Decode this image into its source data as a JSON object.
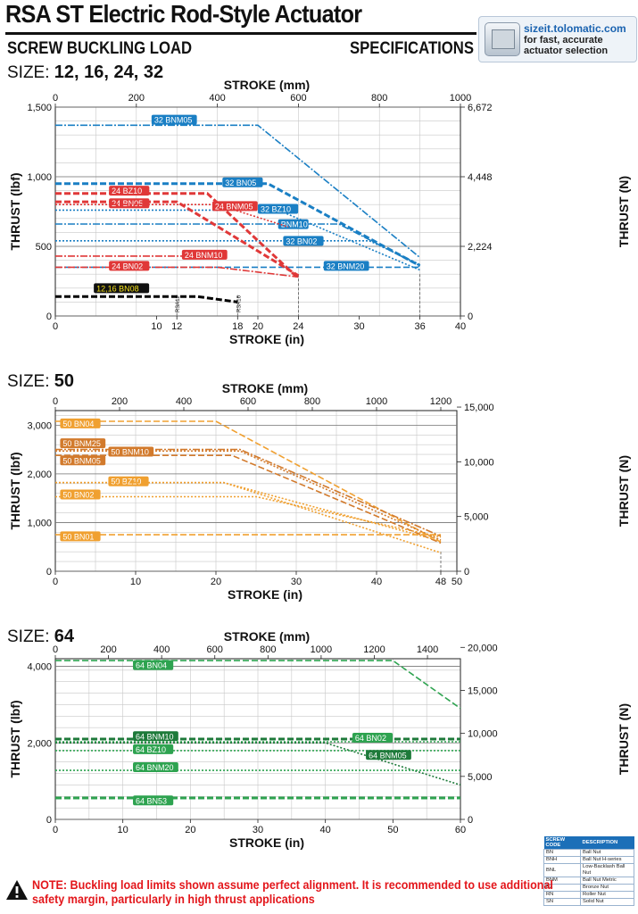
{
  "header": {
    "title": "RSA ST Electric Rod-Style Actuator",
    "left_heading": "SCREW BUCKLING LOAD",
    "right_heading": "SPECIFICATIONS",
    "sizeit_url": "sizeit.tolomatic.com",
    "sizeit_line1": "for fast, accurate",
    "sizeit_line2": "actuator selection",
    "sizeit_icon": "calculator-icon"
  },
  "chart_data": [
    {
      "type": "line",
      "size_prefix": "SIZE:",
      "size_label": "12, 16, 24, 32",
      "xlabel": "STROKE (in)",
      "x2label": "STROKE (mm)",
      "ylabel": "THRUST (lbf)",
      "y2label": "THRUST (N)",
      "xlim": [
        0,
        40
      ],
      "ylim": [
        0,
        1500
      ],
      "x_ticks": [
        "0",
        "10",
        "12",
        "18",
        "20",
        "24",
        "30",
        "36",
        "40"
      ],
      "x_tick_values": [
        0,
        10,
        12,
        18,
        20,
        24,
        30,
        36,
        40
      ],
      "x2_ticks": [
        "0",
        "200",
        "400",
        "600",
        "800",
        "1000"
      ],
      "y_ticks": [
        "0",
        "500",
        "1,000",
        "1,500"
      ],
      "y2_ticks": [
        "0",
        "2,224",
        "4,448",
        "6,672"
      ],
      "stroke_markers": [
        "RSA12",
        "RSA16"
      ],
      "grid": true,
      "series": [
        {
          "name": "32 BNM05",
          "color": "#1a7fc4",
          "dash": "dashdot",
          "label_at": [
            9.5,
            1400
          ],
          "x": [
            0,
            20,
            36
          ],
          "y": [
            1370,
            1370,
            420
          ]
        },
        {
          "name": "32 BN05",
          "color": "#1a7fc4",
          "dash": "dash",
          "label_at": [
            16.5,
            950
          ],
          "x": [
            0,
            21,
            36
          ],
          "y": [
            950,
            950,
            360
          ]
        },
        {
          "name": "32 BZ10",
          "color": "#1a7fc4",
          "dash": "dot",
          "label_at": [
            20,
            760
          ],
          "x": [
            0,
            22,
            36
          ],
          "y": [
            760,
            760,
            330
          ]
        },
        {
          "name": "BNM10",
          "color": "#1a7fc4",
          "dash": "dashdot",
          "label_at": [
            22,
            650
          ],
          "x": [
            0,
            28,
            36
          ],
          "y": [
            660,
            660,
            360
          ]
        },
        {
          "name": "32 BN02",
          "color": "#1a7fc4",
          "dash": "dot",
          "label_at": [
            22.5,
            530
          ],
          "x": [
            0,
            31,
            36
          ],
          "y": [
            540,
            540,
            370
          ]
        },
        {
          "name": "32 BNM20",
          "color": "#1a7fc4",
          "dash": "dash",
          "label_at": [
            26.5,
            350
          ],
          "x": [
            0,
            36
          ],
          "y": [
            350,
            350
          ]
        },
        {
          "name": "24 BZ10",
          "color": "#e03838",
          "dash": "dash",
          "label_at": [
            5.3,
            890
          ],
          "x": [
            0,
            15,
            24
          ],
          "y": [
            880,
            880,
            270
          ]
        },
        {
          "name": "24 BN05",
          "color": "#e03838",
          "dash": "dash",
          "label_at": [
            5.3,
            800
          ],
          "x": [
            0,
            12,
            24
          ],
          "y": [
            820,
            820,
            290
          ]
        },
        {
          "name": "24 BNM05",
          "color": "#e03838",
          "dash": "dot",
          "label_at": [
            15.5,
            780
          ],
          "x": [
            0,
            16,
            23
          ],
          "y": [
            800,
            800,
            640
          ]
        },
        {
          "name": "24 BNM10",
          "color": "#e03838",
          "dash": "dashdot",
          "label_at": [
            12.5,
            430
          ],
          "x": [
            0,
            16
          ],
          "y": [
            430,
            430
          ]
        },
        {
          "name": "24 BN02",
          "color": "#e03838",
          "dash": "dashdot",
          "label_at": [
            5.3,
            350
          ],
          "x": [
            0,
            16,
            24
          ],
          "y": [
            350,
            350,
            280
          ]
        },
        {
          "name": "12,16 BN08",
          "color": "#000000",
          "dash": "dash",
          "label_at": [
            3.8,
            190
          ],
          "x": [
            0,
            14,
            18
          ],
          "y": [
            140,
            140,
            100
          ]
        }
      ]
    },
    {
      "type": "line",
      "size_prefix": "SIZE:",
      "size_label": "50",
      "xlabel": "STROKE (in)",
      "x2label": "STROKE (mm)",
      "ylabel": "THRUST (lbf)",
      "y2label": "THRUST (N)",
      "xlim": [
        0,
        50
      ],
      "ylim": [
        0,
        3300
      ],
      "x_ticks": [
        "0",
        "10",
        "20",
        "30",
        "40",
        "48",
        "50"
      ],
      "x_tick_values": [
        0,
        10,
        20,
        30,
        40,
        48,
        50
      ],
      "x2_ticks": [
        "0",
        "200",
        "400",
        "600",
        "800",
        "1000",
        "1200"
      ],
      "y_ticks": [
        "0",
        "1,000",
        "2,000",
        "3,000"
      ],
      "y2_ticks": [
        "0",
        "5,000",
        "10,000",
        "15,000"
      ],
      "grid": true,
      "series": [
        {
          "name": "50 BN04",
          "color": "#f0a030",
          "dash": "dash",
          "label_at": [
            0.6,
            3010
          ],
          "x": [
            0,
            20,
            48
          ],
          "y": [
            3080,
            3080,
            600
          ]
        },
        {
          "name": "50 BNM25",
          "color": "#d27a2c",
          "dash": "dashdot",
          "label_at": [
            0.6,
            2600
          ],
          "x": [
            0,
            23,
            48
          ],
          "y": [
            2500,
            2500,
            720
          ]
        },
        {
          "name": "50 BNM10",
          "color": "#d27a2c",
          "dash": "dot",
          "label_at": [
            6.6,
            2430
          ],
          "x": [
            0,
            23,
            48
          ],
          "y": [
            2470,
            2470,
            640
          ]
        },
        {
          "name": "50 BNM05",
          "color": "#d27a2c",
          "dash": "dash",
          "label_at": [
            0.6,
            2250
          ],
          "x": [
            0,
            22,
            48
          ],
          "y": [
            2380,
            2380,
            580
          ]
        },
        {
          "name": "50 BZ10",
          "color": "#f0a030",
          "dash": "dot",
          "label_at": [
            6.6,
            1820
          ],
          "x": [
            0,
            21,
            48
          ],
          "y": [
            1820,
            1820,
            620
          ]
        },
        {
          "name": "50 BN02",
          "color": "#f0a030",
          "dash": "dot",
          "label_at": [
            0.6,
            1550
          ],
          "x": [
            0,
            25,
            48
          ],
          "y": [
            1530,
            1530,
            700
          ]
        },
        {
          "name": "50 BN01",
          "color": "#f0a030",
          "dash": "dash",
          "label_at": [
            0.6,
            690
          ],
          "x": [
            0,
            48
          ],
          "y": [
            750,
            750
          ]
        },
        {
          "name": "",
          "color": "#f0a030",
          "dash": "dot",
          "x": [
            0,
            21,
            48
          ],
          "y": [
            1820,
            1820,
            380
          ]
        }
      ]
    },
    {
      "type": "line",
      "size_prefix": "SIZE:",
      "size_label": "64",
      "xlabel": "STROKE (in)",
      "x2label": "STROKE (mm)",
      "ylabel": "THRUST (lbf)",
      "y2label": "THRUST (N)",
      "xlim": [
        0,
        60
      ],
      "ylim": [
        0,
        4200
      ],
      "x_ticks": [
        "0",
        "10",
        "20",
        "30",
        "40",
        "50",
        "60"
      ],
      "x_tick_values": [
        0,
        10,
        20,
        30,
        40,
        50,
        60
      ],
      "x2_ticks": [
        "0",
        "200",
        "400",
        "600",
        "800",
        "1000",
        "1200",
        "1400"
      ],
      "y_ticks": [
        "0",
        "2,000",
        "4,000"
      ],
      "y2_ticks": [
        "0",
        "5,000",
        "10,000",
        "15,000",
        "20,000"
      ],
      "grid": true,
      "series": [
        {
          "name": "64 BN04",
          "color": "#2ea350",
          "dash": "dash",
          "label_at": [
            11.5,
            4000
          ],
          "x": [
            0,
            50,
            60
          ],
          "y": [
            4150,
            4150,
            2900
          ]
        },
        {
          "name": "64 BNM10",
          "color": "#1e7a3a",
          "dash": "dash",
          "label_at": [
            11.5,
            2140
          ],
          "x": [
            0,
            60
          ],
          "y": [
            2100,
            2100
          ]
        },
        {
          "name": "64 BN02",
          "color": "#2ea350",
          "dash": "dot",
          "label_at": [
            44,
            2100
          ],
          "x": [
            0,
            60
          ],
          "y": [
            2030,
            2030
          ]
        },
        {
          "name": "64 BZ10",
          "color": "#2ea350",
          "dash": "dot",
          "label_at": [
            11.5,
            1800
          ],
          "x": [
            0,
            60
          ],
          "y": [
            1800,
            1800
          ]
        },
        {
          "name": "64 BNM05",
          "color": "#1e7a3a",
          "dash": "dot",
          "label_at": [
            46,
            1650
          ],
          "x": [
            0,
            40,
            60
          ],
          "y": [
            2000,
            2000,
            900
          ]
        },
        {
          "name": "64 BNM20",
          "color": "#2ea350",
          "dash": "dot",
          "label_at": [
            11.5,
            1330
          ],
          "x": [
            0,
            60
          ],
          "y": [
            1280,
            1280
          ]
        },
        {
          "name": "64 BN53",
          "color": "#2ea350",
          "dash": "dash",
          "label_at": [
            11.5,
            460
          ],
          "x": [
            0,
            60
          ],
          "y": [
            560,
            560
          ]
        }
      ]
    }
  ],
  "legend_table": {
    "header": [
      "SCREW CODE",
      "DESCRIPTION"
    ],
    "rows": [
      [
        "BN",
        "Ball Nut"
      ],
      [
        "BNH",
        "Ball Nut H-series"
      ],
      [
        "BNL",
        "Low-Backlash Ball Nut"
      ],
      [
        "BNM",
        "Ball Nut Metric"
      ],
      [
        "BZ",
        "Bronze Nut"
      ],
      [
        "RN",
        "Roller Nut"
      ],
      [
        "SN",
        "Solid Nut"
      ]
    ]
  },
  "note": {
    "icon": "warning-icon",
    "text": "NOTE: Buckling load limits shown assume perfect alignment. It is recommended to use additional safety margin, particularly in high thrust applications"
  }
}
